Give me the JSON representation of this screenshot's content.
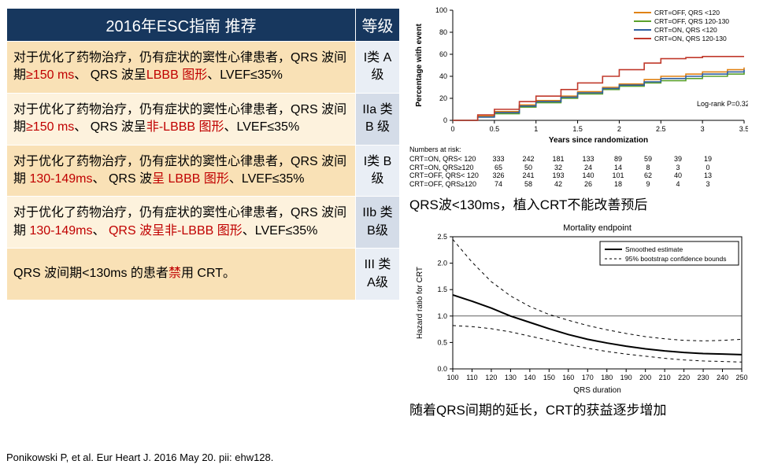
{
  "table": {
    "header": {
      "col1": "2016年ESC指南\n推荐",
      "col2": "等级"
    },
    "rows": [
      {
        "text_pre": "对于优化了药物治疗，仍有症状的窦性心律患者，QRS 波间期",
        "red1": "≥150 ms",
        "mid1": "、 QRS 波呈",
        "red2": "LBBB 图形",
        "tail": "、LVEF≤35%",
        "grade": "I类\nA级"
      },
      {
        "text_pre": "对于优化了药物治疗，仍有症状的窦性心律患者，QRS 波间期",
        "red1": "≥150 ms",
        "mid1": "、 QRS 波呈",
        "red2": "非-LBBB 图形",
        "tail": "、LVEF≤35%",
        "grade": "IIa\n类B\n级"
      },
      {
        "text_pre": "对于优化了药物治疗，仍有症状的窦性心律患者，QRS 波间期 ",
        "red1": "130-149ms",
        "mid1": "、 QRS 波",
        "red2": "呈 LBBB 图形",
        "tail": "、LVEF≤35%",
        "grade": "I类\nB级"
      },
      {
        "text_pre": "对于优化了药物治疗，仍有症状的窦性心律患者，QRS 波间期 ",
        "red1": "130-149ms",
        "mid1": "、 ",
        "red2": "QRS 波呈非-LBBB 图形",
        "tail": "、LVEF≤35%",
        "grade": "IIb\n类\nB级"
      },
      {
        "text_pre": "QRS 波间期<130ms 的患者",
        "red1": "禁",
        "mid1": "用 CRT。",
        "red2": "",
        "tail": "",
        "grade": "III\n类\nA级"
      }
    ]
  },
  "citation": "Ponikowski P, et al. Eur Heart J. 2016 May 20. pii: ehw128.",
  "chart1": {
    "title": "",
    "ylabel": "Percentage with event",
    "xlabel": "Years since randomization",
    "annotation": "Log-rank P=0.32",
    "ylim": [
      0,
      100
    ],
    "ytick_step": 20,
    "xlim": [
      0,
      3.5
    ],
    "xtick_step": 0.5,
    "legend": [
      {
        "label": "CRT=OFF, QRS <120",
        "color": "#e08214"
      },
      {
        "label": "CRT=OFF, QRS 120-130",
        "color": "#5aa02c"
      },
      {
        "label": "CRT=ON, QRS <120",
        "color": "#2e5fa1"
      },
      {
        "label": "CRT=ON, QRS 120-130",
        "color": "#c0392b"
      }
    ],
    "series": [
      {
        "color": "#e08214",
        "points": [
          [
            0,
            0
          ],
          [
            0.3,
            4
          ],
          [
            0.5,
            8
          ],
          [
            0.8,
            14
          ],
          [
            1.0,
            18
          ],
          [
            1.3,
            22
          ],
          [
            1.5,
            26
          ],
          [
            1.8,
            30
          ],
          [
            2.0,
            33
          ],
          [
            2.3,
            37
          ],
          [
            2.5,
            40
          ],
          [
            2.8,
            42
          ],
          [
            3.0,
            44
          ],
          [
            3.3,
            46
          ],
          [
            3.5,
            48
          ]
        ]
      },
      {
        "color": "#5aa02c",
        "points": [
          [
            0,
            0
          ],
          [
            0.3,
            3
          ],
          [
            0.5,
            6
          ],
          [
            0.8,
            12
          ],
          [
            1.0,
            16
          ],
          [
            1.3,
            20
          ],
          [
            1.5,
            24
          ],
          [
            1.8,
            28
          ],
          [
            2.0,
            31
          ],
          [
            2.3,
            34
          ],
          [
            2.5,
            36
          ],
          [
            2.8,
            38
          ],
          [
            3.0,
            40
          ],
          [
            3.3,
            42
          ],
          [
            3.5,
            44
          ]
        ]
      },
      {
        "color": "#2e5fa1",
        "points": [
          [
            0,
            0
          ],
          [
            0.3,
            3
          ],
          [
            0.5,
            7
          ],
          [
            0.8,
            13
          ],
          [
            1.0,
            17
          ],
          [
            1.3,
            21
          ],
          [
            1.5,
            25
          ],
          [
            1.8,
            29
          ],
          [
            2.0,
            32
          ],
          [
            2.3,
            35
          ],
          [
            2.5,
            38
          ],
          [
            2.8,
            40
          ],
          [
            3.0,
            42
          ],
          [
            3.3,
            44
          ],
          [
            3.5,
            46
          ]
        ]
      },
      {
        "color": "#c0392b",
        "points": [
          [
            0,
            0
          ],
          [
            0.3,
            5
          ],
          [
            0.5,
            10
          ],
          [
            0.8,
            17
          ],
          [
            1.0,
            22
          ],
          [
            1.3,
            28
          ],
          [
            1.5,
            34
          ],
          [
            1.8,
            40
          ],
          [
            2.0,
            46
          ],
          [
            2.3,
            52
          ],
          [
            2.5,
            56
          ],
          [
            2.8,
            57
          ],
          [
            3.0,
            58
          ],
          [
            3.3,
            58
          ],
          [
            3.5,
            58
          ]
        ]
      }
    ],
    "risk_table": {
      "labels": [
        "CRT=ON, QRS< 120",
        "CRT=ON, QRS≥120",
        "CRT=OFF, QRS< 120",
        "CRT=OFF, QRS≥120"
      ],
      "rows": [
        [
          "333",
          "242",
          "181",
          "133",
          "89",
          "59",
          "39",
          "19"
        ],
        [
          "65",
          "50",
          "32",
          "24",
          "14",
          "8",
          "3",
          "0"
        ],
        [
          "326",
          "241",
          "193",
          "140",
          "101",
          "62",
          "40",
          "13"
        ],
        [
          "74",
          "58",
          "42",
          "26",
          "18",
          "9",
          "4",
          "3"
        ]
      ]
    }
  },
  "caption1": "QRS波<130ms，植入CRT不能改善预后",
  "chart2": {
    "title": "Mortality endpoint",
    "ylabel": "Hazard ratio for CRT",
    "xlabel": "QRS duration",
    "legend": [
      "Smoothed estimate",
      "95% bootstrap confidence bounds"
    ],
    "ylim": [
      0,
      2.5
    ],
    "ytick_step": 0.5,
    "xlim": [
      100,
      250
    ],
    "xtick_step": 10,
    "line_main": {
      "color": "#000",
      "points": [
        [
          100,
          1.4
        ],
        [
          110,
          1.28
        ],
        [
          120,
          1.15
        ],
        [
          130,
          1.0
        ],
        [
          140,
          0.88
        ],
        [
          150,
          0.76
        ],
        [
          160,
          0.65
        ],
        [
          170,
          0.56
        ],
        [
          180,
          0.49
        ],
        [
          190,
          0.43
        ],
        [
          200,
          0.38
        ],
        [
          210,
          0.34
        ],
        [
          220,
          0.31
        ],
        [
          230,
          0.29
        ],
        [
          240,
          0.28
        ],
        [
          250,
          0.27
        ]
      ]
    },
    "line_upper": {
      "color": "#000",
      "dash": "4,4",
      "points": [
        [
          100,
          2.45
        ],
        [
          110,
          2.02
        ],
        [
          120,
          1.65
        ],
        [
          130,
          1.38
        ],
        [
          140,
          1.18
        ],
        [
          150,
          1.03
        ],
        [
          160,
          0.92
        ],
        [
          170,
          0.82
        ],
        [
          180,
          0.74
        ],
        [
          190,
          0.67
        ],
        [
          200,
          0.61
        ],
        [
          210,
          0.57
        ],
        [
          220,
          0.54
        ],
        [
          230,
          0.53
        ],
        [
          240,
          0.54
        ],
        [
          250,
          0.56
        ]
      ]
    },
    "line_lower": {
      "color": "#000",
      "dash": "4,4",
      "points": [
        [
          100,
          0.82
        ],
        [
          110,
          0.8
        ],
        [
          120,
          0.76
        ],
        [
          130,
          0.7
        ],
        [
          140,
          0.62
        ],
        [
          150,
          0.54
        ],
        [
          160,
          0.46
        ],
        [
          170,
          0.39
        ],
        [
          180,
          0.33
        ],
        [
          190,
          0.28
        ],
        [
          200,
          0.24
        ],
        [
          210,
          0.2
        ],
        [
          220,
          0.17
        ],
        [
          230,
          0.15
        ],
        [
          240,
          0.14
        ],
        [
          250,
          0.13
        ]
      ]
    }
  },
  "caption2": "随着QRS间期的延长，CRT的获益逐步增加"
}
